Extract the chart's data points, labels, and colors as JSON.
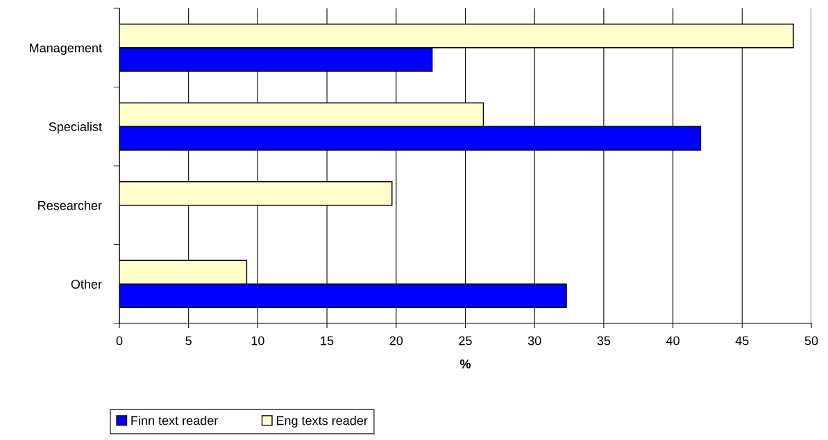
{
  "chart_data": {
    "type": "bar",
    "orientation": "horizontal",
    "xlabel": "%",
    "categories": [
      "Management",
      "Specialist",
      "Researcher",
      "Other"
    ],
    "series": [
      {
        "name": "Finn text reader",
        "color": "#0000ff",
        "values": [
          22.6,
          42.0,
          null,
          32.3
        ]
      },
      {
        "name": "Eng texts reader",
        "color": "#ffffcc",
        "values": [
          48.7,
          26.3,
          19.7,
          9.2
        ]
      }
    ],
    "xlim": [
      0,
      50
    ],
    "xticks": [
      0,
      5,
      10,
      15,
      20,
      25,
      30,
      35,
      40,
      45,
      50
    ],
    "grid": "x",
    "legend": "bottom"
  }
}
